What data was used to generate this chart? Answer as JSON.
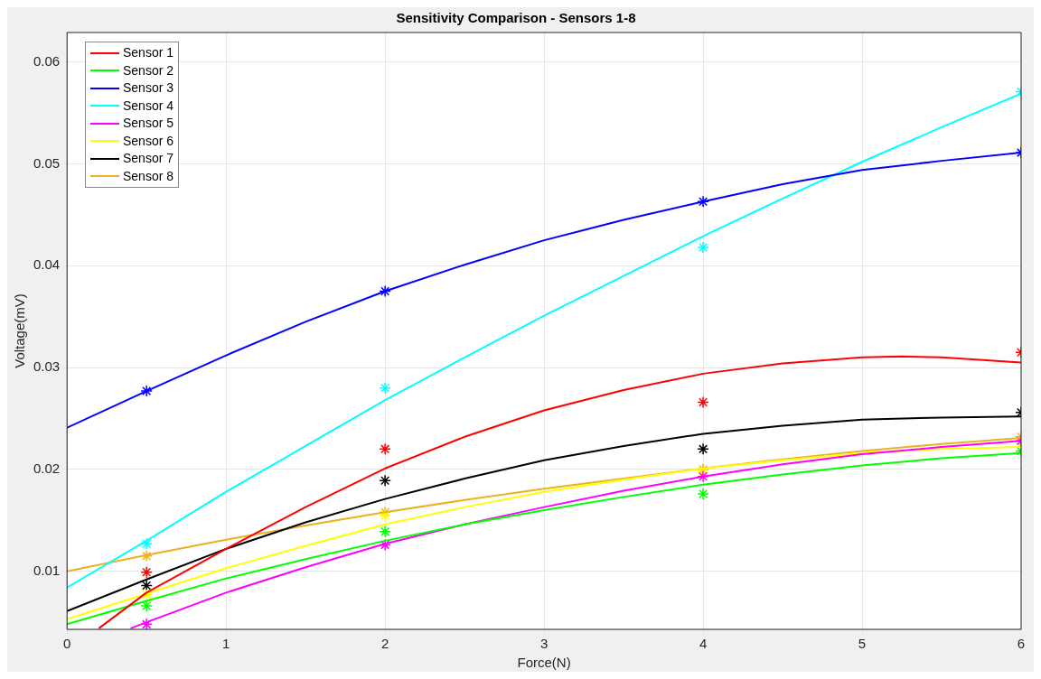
{
  "chart_data": {
    "type": "line",
    "title": "Sensitivity Comparison - Sensors 1-8",
    "xlabel": "Force(N)",
    "ylabel": "Voltage(mV)",
    "xlim": [
      0,
      6
    ],
    "xticks": [
      0,
      1,
      2,
      3,
      4,
      5,
      6
    ],
    "ylim": [
      0.0043,
      0.0629
    ],
    "yticks": [
      0.01,
      0.02,
      0.03,
      0.04,
      0.05,
      0.06
    ],
    "grid": true,
    "legend": "top left",
    "series": [
      {
        "name": "Sensor 1",
        "type": "line",
        "marker": "none",
        "color": "#ff0000",
        "x": [
          0.2,
          0.5,
          1,
          1.5,
          2,
          2.5,
          3,
          3.5,
          4,
          4.5,
          5,
          5.25,
          5.5,
          6
        ],
        "values": [
          0.0044,
          0.0079,
          0.0122,
          0.0163,
          0.0201,
          0.0232,
          0.0258,
          0.0278,
          0.0294,
          0.0304,
          0.031,
          0.0311,
          0.031,
          0.0305
        ]
      },
      {
        "name": "Sensor 2",
        "type": "line",
        "marker": "none",
        "color": "#00ff00",
        "x": [
          0,
          0.5,
          1,
          1.5,
          2,
          2.5,
          3,
          3.5,
          4,
          4.5,
          5,
          5.5,
          6
        ],
        "values": [
          0.0048,
          0.0071,
          0.0093,
          0.0112,
          0.013,
          0.0146,
          0.016,
          0.0173,
          0.0185,
          0.0195,
          0.0204,
          0.0211,
          0.0216
        ]
      },
      {
        "name": "Sensor 3",
        "type": "line",
        "marker": "none",
        "color": "#0000ff",
        "x": [
          0,
          0.5,
          1,
          1.5,
          2,
          2.5,
          3,
          3.5,
          4,
          4.5,
          5,
          5.5,
          6
        ],
        "values": [
          0.0241,
          0.0277,
          0.0312,
          0.0345,
          0.0375,
          0.0401,
          0.0425,
          0.0445,
          0.0463,
          0.048,
          0.0494,
          0.0503,
          0.0511
        ]
      },
      {
        "name": "Sensor 4",
        "type": "line",
        "marker": "none",
        "color": "#00ffff",
        "x": [
          0,
          0.5,
          1,
          1.5,
          2,
          2.5,
          3,
          3.5,
          4,
          4.5,
          5,
          5.5,
          6
        ],
        "values": [
          0.0084,
          0.013,
          0.0178,
          0.0223,
          0.0268,
          0.031,
          0.0351,
          0.039,
          0.0429,
          0.0466,
          0.0502,
          0.0536,
          0.0569
        ]
      },
      {
        "name": "Sensor 5",
        "type": "line",
        "marker": "none",
        "color": "#ff00ff",
        "x": [
          0.4,
          0.5,
          1,
          1.5,
          2,
          2.5,
          3,
          3.5,
          4,
          4.5,
          5,
          5.5,
          6
        ],
        "values": [
          0.0044,
          0.005,
          0.0079,
          0.0104,
          0.0127,
          0.0146,
          0.0163,
          0.0179,
          0.0193,
          0.0205,
          0.0215,
          0.0222,
          0.0228
        ]
      },
      {
        "name": "Sensor 6",
        "type": "line",
        "marker": "none",
        "color": "#ffff00",
        "x": [
          0,
          0.5,
          1,
          1.5,
          2,
          2.5,
          3,
          3.5,
          4,
          4.5,
          5,
          5.5,
          6
        ],
        "values": [
          0.0053,
          0.0078,
          0.0103,
          0.0125,
          0.0146,
          0.0163,
          0.0178,
          0.019,
          0.0201,
          0.0209,
          0.0216,
          0.022,
          0.0222
        ]
      },
      {
        "name": "Sensor 7",
        "type": "line",
        "marker": "none",
        "color": "#000000",
        "x": [
          0,
          0.5,
          1,
          1.5,
          2,
          2.5,
          3,
          3.5,
          4,
          4.5,
          5,
          5.5,
          6
        ],
        "values": [
          0.0061,
          0.0092,
          0.0122,
          0.0148,
          0.0171,
          0.0191,
          0.0209,
          0.0223,
          0.0235,
          0.0243,
          0.0249,
          0.0251,
          0.0252
        ]
      },
      {
        "name": "Sensor 8",
        "type": "line",
        "marker": "none",
        "color": "#edb120",
        "x": [
          0,
          0.5,
          1,
          1.5,
          2,
          2.5,
          3,
          3.5,
          4,
          4.5,
          5,
          5.5,
          6
        ],
        "values": [
          0.01,
          0.0116,
          0.0131,
          0.0145,
          0.0158,
          0.017,
          0.0181,
          0.0191,
          0.0201,
          0.021,
          0.0218,
          0.0225,
          0.0231
        ]
      },
      {
        "type": "scatter",
        "marker": "cross",
        "color": "#ff0000",
        "x": [
          0.5,
          2,
          4,
          6
        ],
        "values": [
          0.0099,
          0.022,
          0.0266,
          0.0315
        ]
      },
      {
        "type": "scatter",
        "marker": "cross",
        "color": "#00ff00",
        "x": [
          0.5,
          2,
          4,
          6
        ],
        "values": [
          0.0066,
          0.0139,
          0.0176,
          0.0218
        ]
      },
      {
        "type": "scatter",
        "marker": "cross",
        "color": "#0000ff",
        "x": [
          0.5,
          2,
          4,
          6
        ],
        "values": [
          0.0277,
          0.0375,
          0.0463,
          0.0511
        ]
      },
      {
        "type": "scatter",
        "marker": "cross",
        "color": "#00ffff",
        "x": [
          0.5,
          2,
          4,
          6
        ],
        "values": [
          0.0127,
          0.028,
          0.0418,
          0.0571
        ]
      },
      {
        "type": "scatter",
        "marker": "cross",
        "color": "#ff00ff",
        "x": [
          0.5,
          2,
          4,
          6
        ],
        "values": [
          0.0048,
          0.0126,
          0.0193,
          0.0228
        ]
      },
      {
        "type": "scatter",
        "marker": "cross",
        "color": "#ffff00",
        "x": [
          0.5,
          2,
          4,
          6
        ],
        "values": [
          0.0077,
          0.0155,
          0.0197,
          0.0225
        ]
      },
      {
        "type": "scatter",
        "marker": "cross",
        "color": "#000000",
        "x": [
          0.5,
          2,
          4,
          6
        ],
        "values": [
          0.0086,
          0.0189,
          0.022,
          0.0256
        ]
      },
      {
        "type": "scatter",
        "marker": "cross",
        "color": "#edb120",
        "x": [
          0.5,
          2,
          4,
          6
        ],
        "values": [
          0.0115,
          0.0158,
          0.02,
          0.0232
        ]
      }
    ]
  }
}
